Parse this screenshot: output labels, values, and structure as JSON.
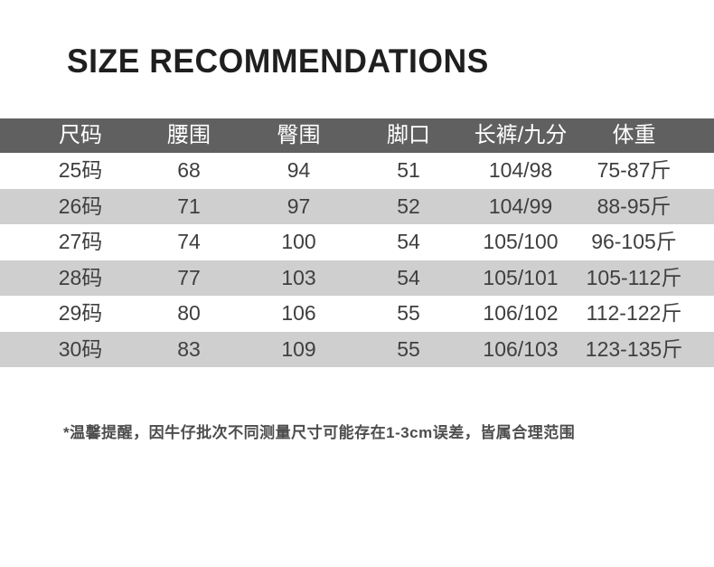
{
  "page": {
    "title": "SIZE RECOMMENDATIONS",
    "footnote": "*温馨提醒，因牛仔批次不同测量尺寸可能存在1-3cm误差，皆属合理范围"
  },
  "size_table": {
    "columns": [
      "尺码",
      "腰围",
      "臀围",
      "脚口",
      "长裤/九分",
      "体重"
    ],
    "rows": [
      [
        "25码",
        "68",
        "94",
        "51",
        "104/98",
        "75-87斤"
      ],
      [
        "26码",
        "71",
        "97",
        "52",
        "104/99",
        "88-95斤"
      ],
      [
        "27码",
        "74",
        "100",
        "54",
        "105/100",
        "96-105斤"
      ],
      [
        "28码",
        "77",
        "103",
        "54",
        "105/101",
        "105-112斤"
      ],
      [
        "29码",
        "80",
        "106",
        "55",
        "106/102",
        "112-122斤"
      ],
      [
        "30码",
        "83",
        "109",
        "55",
        "106/103",
        "123-135斤"
      ]
    ]
  },
  "colors": {
    "header_bg": "#606060",
    "header_text": "#ffffff",
    "row_alt_bg": "#cfcfcf",
    "body_text": "#3f3f3f",
    "title_text": "#1f1f1f",
    "footnote_text": "#4d4d4d",
    "page_bg": "#ffffff"
  }
}
